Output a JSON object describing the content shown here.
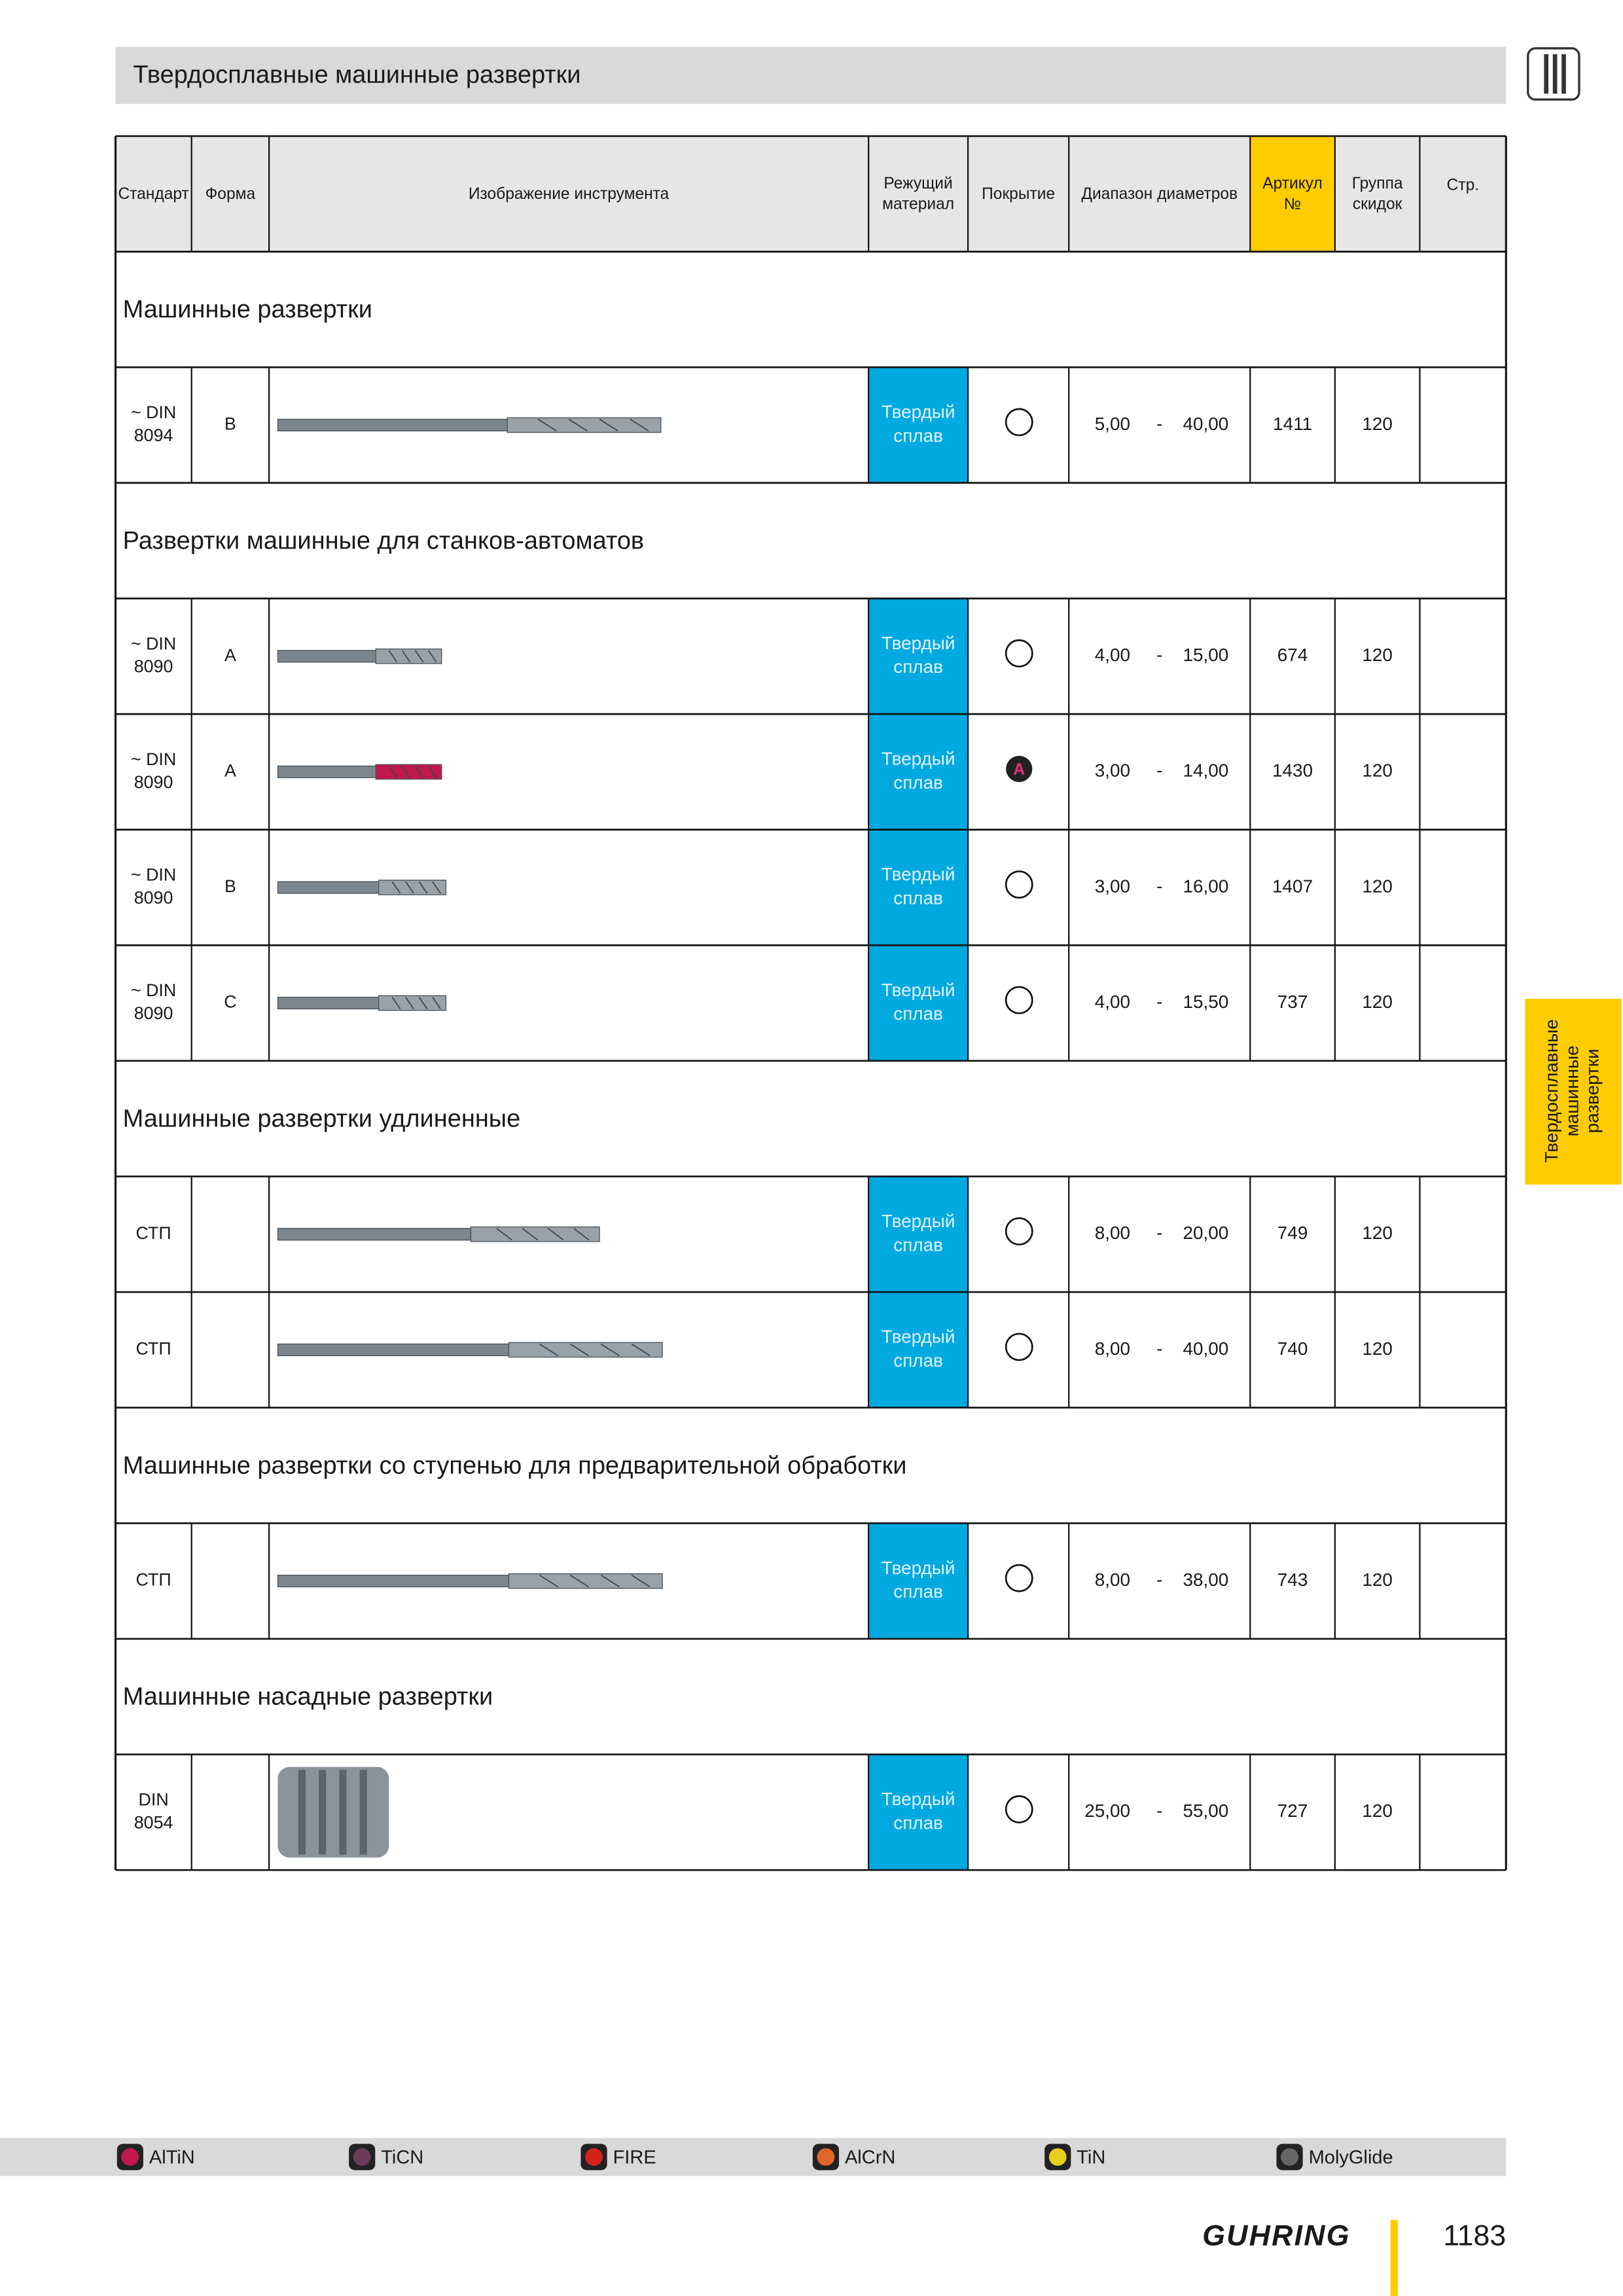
{
  "header": {
    "title": "Твердосплавные машинные развертки"
  },
  "table": {
    "columns": [
      [
        "Стандарт"
      ],
      [
        "Форма"
      ],
      [
        "Изображение инструмента"
      ],
      [
        "Режущий",
        "материал"
      ],
      [
        "Покрытие"
      ],
      [
        "Диапазон диаметров"
      ],
      [
        "Артикул",
        "№"
      ],
      [
        "Группа",
        "скидок"
      ],
      [
        "Стр."
      ]
    ],
    "range_separator": "-",
    "sections": [
      {
        "title": "Машинные развертки",
        "rows": [
          {
            "standard": [
              "~ DIN",
              "8094"
            ],
            "form": "B",
            "material": [
              "Твердый",
              "сплав"
            ],
            "coating": null,
            "dmin": "5,00",
            "dmax": "40,00",
            "article": "1411",
            "group": "120"
          }
        ]
      },
      {
        "title": "Развертки машинные для станков-автоматов",
        "rows": [
          {
            "standard": [
              "~ DIN",
              "8090"
            ],
            "form": "A",
            "material": [
              "Твердый",
              "сплав"
            ],
            "coating": null,
            "dmin": "4,00",
            "dmax": "15,00",
            "article": "674",
            "group": "120"
          },
          {
            "standard": [
              "~ DIN",
              "8090"
            ],
            "form": "A",
            "material": [
              "Твердый",
              "сплав"
            ],
            "coating": "A",
            "dmin": "3,00",
            "dmax": "14,00",
            "article": "1430",
            "group": "120"
          },
          {
            "standard": [
              "~ DIN",
              "8090"
            ],
            "form": "B",
            "material": [
              "Твердый",
              "сплав"
            ],
            "coating": null,
            "dmin": "3,00",
            "dmax": "16,00",
            "article": "1407",
            "group": "120"
          },
          {
            "standard": [
              "~ DIN",
              "8090"
            ],
            "form": "C",
            "material": [
              "Твердый",
              "сплав"
            ],
            "coating": null,
            "dmin": "4,00",
            "dmax": "15,50",
            "article": "737",
            "group": "120"
          }
        ]
      },
      {
        "title": "Машинные развертки удлиненные",
        "rows": [
          {
            "standard": [
              "СТП"
            ],
            "form": null,
            "material": [
              "Твердый",
              "сплав"
            ],
            "coating": null,
            "dmin": "8,00",
            "dmax": "20,00",
            "article": "749",
            "group": "120"
          },
          {
            "standard": [
              "СТП"
            ],
            "form": null,
            "material": [
              "Твердый",
              "сплав"
            ],
            "coating": null,
            "dmin": "8,00",
            "dmax": "40,00",
            "article": "740",
            "group": "120"
          }
        ]
      },
      {
        "title": "Машинные развертки со ступенью для предварительной обработки",
        "rows": [
          {
            "standard": [
              "СТП"
            ],
            "form": null,
            "material": [
              "Твердый",
              "сплав"
            ],
            "coating": null,
            "dmin": "8,00",
            "dmax": "38,00",
            "article": "743",
            "group": "120"
          }
        ]
      },
      {
        "title": "Машинные насадные развертки",
        "rows": [
          {
            "standard": [
              "DIN",
              "8054"
            ],
            "form": null,
            "material": [
              "Твердый",
              "сплав"
            ],
            "coating": null,
            "dmin": "25,00",
            "dmax": "55,00",
            "article": "727",
            "group": "120"
          }
        ]
      }
    ]
  },
  "side_tab": [
    "Твердосплавные",
    "машинные",
    "развертки"
  ],
  "legend": [
    "AlTiN",
    "TiCN",
    "FIRE",
    "AlCrN",
    "TiN",
    "MolyGlide"
  ],
  "footer": {
    "logo": "GUHRING",
    "page": "1183"
  }
}
